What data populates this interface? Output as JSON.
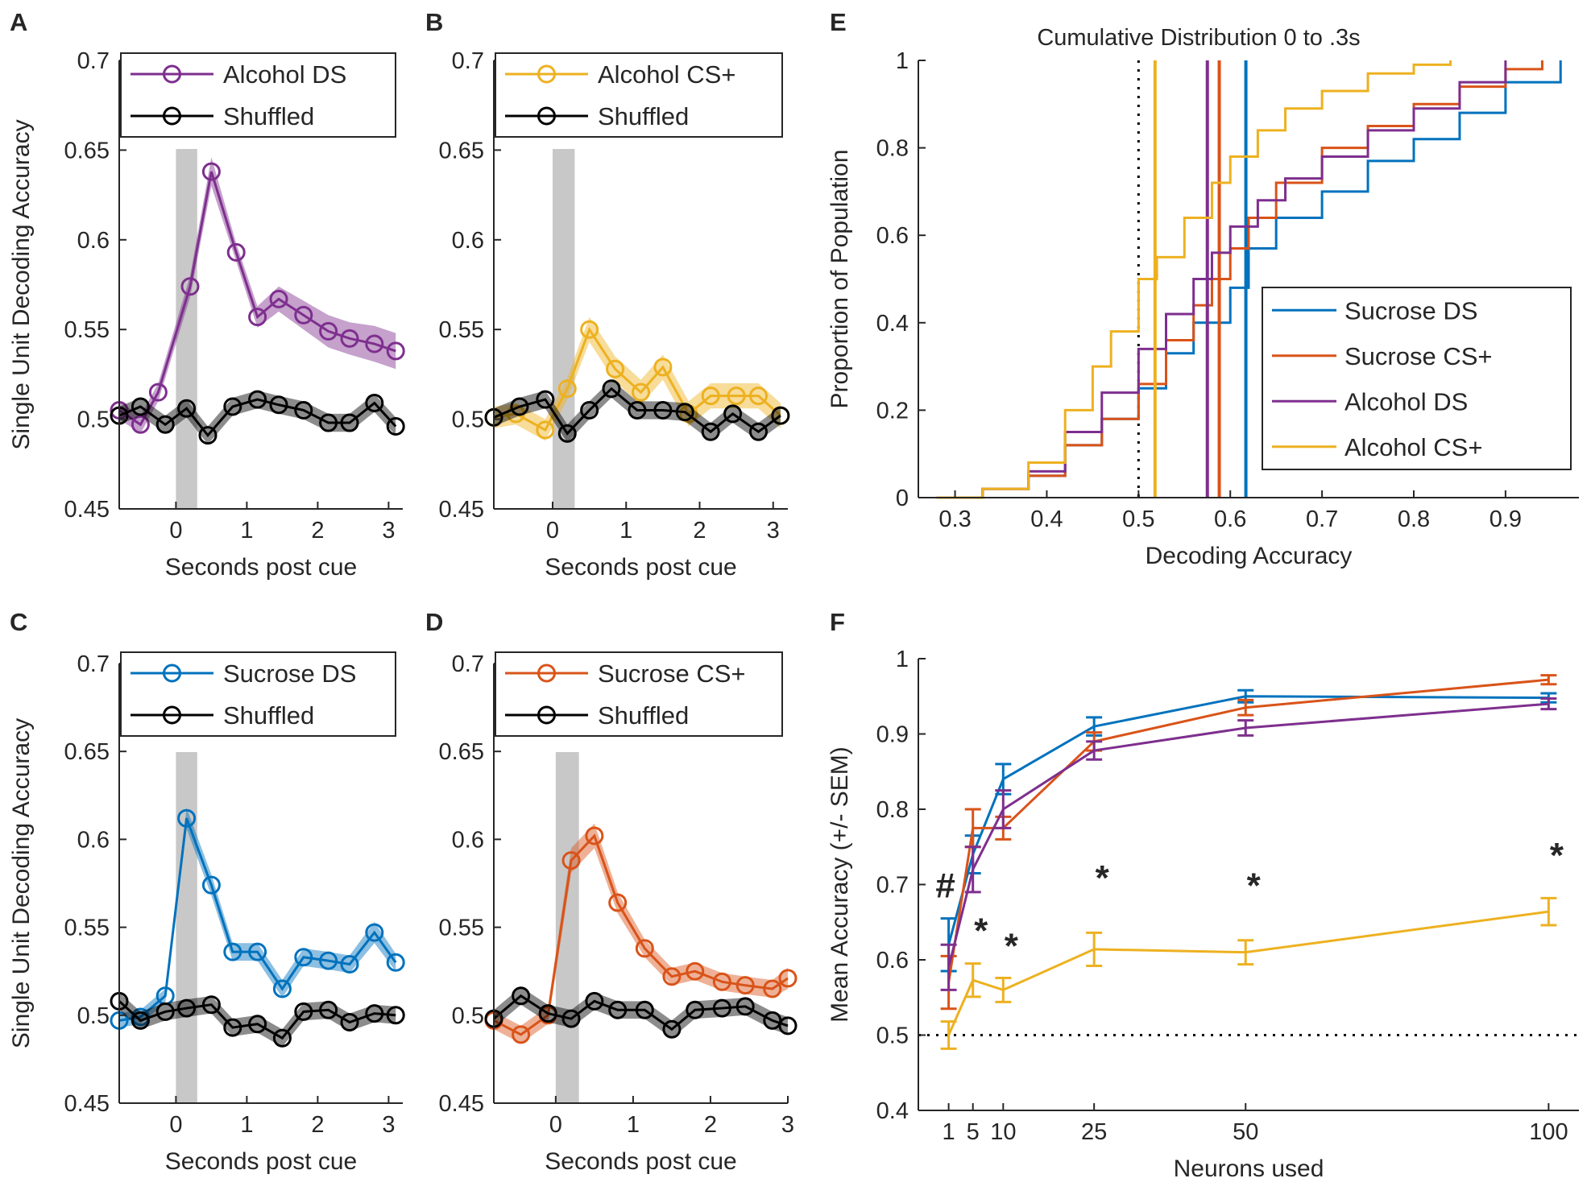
{
  "colors": {
    "alcohol_ds": "#7E2F8E",
    "alcohol_cs": "#EDB120",
    "sucrose_ds": "#0072BD",
    "sucrose_cs": "#D95319",
    "shuffled": "#000000",
    "window": "#C8C8C8"
  },
  "chart_data": [
    {
      "id": "A",
      "type": "line",
      "panel_label": "A",
      "xlabel": "Seconds post cue",
      "ylabel": "Single Unit Decoding Accuracy",
      "xlim": [
        -0.8,
        3.2
      ],
      "ylim": [
        0.45,
        0.7
      ],
      "xticks": [
        0,
        1,
        2,
        3
      ],
      "yticks": [
        0.45,
        0.5,
        0.55,
        0.6,
        0.65,
        0.7
      ],
      "ytick_labels": [
        "0.45",
        "0.5",
        "0.55",
        "0.6",
        "0.65",
        "0.7"
      ],
      "shaded_window": [
        0,
        0.3
      ],
      "legend": [
        "Alcohol DS",
        "Shuffled"
      ],
      "x": [
        -0.75,
        -0.45,
        -0.15,
        0.2,
        0.5,
        0.85,
        1.15,
        1.5,
        1.8,
        2.15,
        2.45,
        2.8,
        3.1
      ],
      "series": [
        {
          "name": "Alcohol DS",
          "color_key": "alcohol_ds",
          "x": [
            -0.8,
            -0.5,
            -0.25,
            0.0,
            0.2,
            0.5,
            0.85,
            1.15,
            1.45,
            1.8,
            2.15,
            2.45,
            2.8,
            3.1
          ],
          "values": [
            0.505,
            0.497,
            0.515,
            null,
            0.574,
            0.638,
            0.593,
            0.557,
            0.567,
            0.558,
            0.549,
            0.545,
            0.542,
            0.538
          ],
          "sem": [
            0.005,
            0.005,
            0.005,
            null,
            0.006,
            0.008,
            0.005,
            0.006,
            0.007,
            0.008,
            0.009,
            0.009,
            0.01,
            0.01
          ]
        },
        {
          "name": "Shuffled",
          "color_key": "shuffled",
          "x": [
            -0.8,
            -0.5,
            -0.15,
            0.15,
            0.45,
            0.8,
            1.15,
            1.45,
            1.8,
            2.15,
            2.45,
            2.8,
            3.1
          ],
          "values": [
            0.502,
            0.507,
            0.497,
            0.506,
            0.491,
            0.507,
            0.511,
            0.508,
            0.505,
            0.498,
            0.498,
            0.509,
            0.496
          ],
          "sem": [
            0.005,
            0.005,
            0.005,
            0.005,
            0.005,
            0.005,
            0.005,
            0.005,
            0.005,
            0.005,
            0.005,
            0.005,
            0.005
          ]
        }
      ]
    },
    {
      "id": "B",
      "type": "line",
      "panel_label": "B",
      "xlabel": "Seconds post cue",
      "ylabel": "",
      "xlim": [
        -0.8,
        3.2
      ],
      "ylim": [
        0.45,
        0.7
      ],
      "xticks": [
        0,
        1,
        2,
        3
      ],
      "yticks": [
        0.45,
        0.5,
        0.55,
        0.6,
        0.65,
        0.7
      ],
      "ytick_labels": [
        "0.45",
        "0.5",
        "0.55",
        "0.6",
        "0.65",
        "0.7"
      ],
      "shaded_window": [
        0,
        0.3
      ],
      "legend": [
        "Alcohol CS+",
        "Shuffled"
      ],
      "series": [
        {
          "name": "Alcohol CS+",
          "color_key": "alcohol_cs",
          "x": [
            -0.8,
            -0.5,
            -0.1,
            0.2,
            0.5,
            0.85,
            1.2,
            1.5,
            1.85,
            2.15,
            2.5,
            2.8,
            3.1
          ],
          "values": [
            0.501,
            0.503,
            0.494,
            0.517,
            0.55,
            0.528,
            0.515,
            0.529,
            0.503,
            0.513,
            0.513,
            0.513,
            0.502
          ],
          "sem": [
            0.006,
            0.006,
            0.006,
            0.006,
            0.007,
            0.007,
            0.007,
            0.007,
            0.007,
            0.007,
            0.007,
            0.007,
            0.007
          ]
        },
        {
          "name": "Shuffled",
          "color_key": "shuffled",
          "x": [
            -0.8,
            -0.45,
            -0.1,
            0.2,
            0.5,
            0.8,
            1.15,
            1.5,
            1.8,
            2.15,
            2.45,
            2.8,
            3.1
          ],
          "values": [
            0.501,
            0.507,
            0.511,
            0.492,
            0.505,
            0.517,
            0.505,
            0.505,
            0.504,
            0.493,
            0.503,
            0.493,
            0.502
          ],
          "sem": [
            0.005,
            0.005,
            0.005,
            0.005,
            0.005,
            0.005,
            0.005,
            0.005,
            0.005,
            0.005,
            0.005,
            0.005,
            0.005
          ]
        }
      ]
    },
    {
      "id": "C",
      "type": "line",
      "panel_label": "C",
      "xlabel": "Seconds post cue",
      "ylabel": "Single Unit Decoding Accuracy",
      "xlim": [
        -0.8,
        3.2
      ],
      "ylim": [
        0.45,
        0.7
      ],
      "xticks": [
        0,
        1,
        2,
        3
      ],
      "yticks": [
        0.45,
        0.5,
        0.55,
        0.6,
        0.65,
        0.7
      ],
      "ytick_labels": [
        "0.45",
        "0.5",
        "0.55",
        "0.6",
        "0.65",
        "0.7"
      ],
      "shaded_window": [
        0,
        0.3
      ],
      "legend": [
        "Sucrose DS",
        "Shuffled"
      ],
      "series": [
        {
          "name": "Sucrose DS",
          "color_key": "sucrose_ds",
          "x": [
            -0.8,
            -0.5,
            -0.15,
            0.15,
            0.5,
            0.8,
            1.15,
            1.5,
            1.8,
            2.15,
            2.45,
            2.8,
            3.1
          ],
          "values": [
            0.497,
            0.499,
            0.511,
            0.612,
            0.574,
            0.536,
            0.536,
            0.515,
            0.533,
            0.531,
            0.529,
            0.547,
            0.53
          ],
          "sem": [
            0.004,
            0.004,
            0.004,
            0.006,
            0.006,
            0.005,
            0.005,
            0.005,
            0.005,
            0.005,
            0.005,
            0.006,
            0.005
          ]
        },
        {
          "name": "Shuffled",
          "color_key": "shuffled",
          "x": [
            -0.8,
            -0.5,
            -0.15,
            0.15,
            0.5,
            0.8,
            1.15,
            1.5,
            1.8,
            2.15,
            2.45,
            2.8,
            3.1
          ],
          "values": [
            0.508,
            0.497,
            0.502,
            0.504,
            0.506,
            0.493,
            0.495,
            0.487,
            0.502,
            0.503,
            0.496,
            0.501,
            0.5
          ],
          "sem": [
            0.005,
            0.005,
            0.005,
            0.005,
            0.005,
            0.005,
            0.005,
            0.005,
            0.005,
            0.005,
            0.005,
            0.005,
            0.005
          ]
        }
      ]
    },
    {
      "id": "D",
      "type": "line",
      "panel_label": "D",
      "xlabel": "Seconds post cue",
      "ylabel": "",
      "xlim": [
        -0.8,
        3.0
      ],
      "ylim": [
        0.45,
        0.7
      ],
      "xticks": [
        0,
        1,
        2,
        3
      ],
      "yticks": [
        0.45,
        0.5,
        0.55,
        0.6,
        0.65,
        0.7
      ],
      "ytick_labels": [
        "0.45",
        "0.5",
        "0.55",
        "0.6",
        "0.65",
        "0.7"
      ],
      "shaded_window": [
        0,
        0.3
      ],
      "legend": [
        "Sucrose CS+",
        "Shuffled"
      ],
      "series": [
        {
          "name": "Sucrose CS+",
          "color_key": "sucrose_cs",
          "x": [
            -0.8,
            -0.45,
            -0.1,
            0.2,
            0.5,
            0.8,
            1.15,
            1.5,
            1.8,
            2.15,
            2.45,
            2.8,
            3.0
          ],
          "values": [
            0.497,
            0.489,
            0.5,
            0.588,
            0.602,
            0.564,
            0.538,
            0.522,
            0.525,
            0.519,
            0.517,
            0.515,
            0.521
          ],
          "sem": [
            0.005,
            0.005,
            0.005,
            0.007,
            0.007,
            0.006,
            0.005,
            0.005,
            0.005,
            0.005,
            0.005,
            0.005,
            0.006
          ]
        },
        {
          "name": "Shuffled",
          "color_key": "shuffled",
          "x": [
            -0.8,
            -0.45,
            -0.1,
            0.2,
            0.5,
            0.8,
            1.15,
            1.5,
            1.8,
            2.15,
            2.45,
            2.8,
            3.0
          ],
          "values": [
            0.498,
            0.511,
            0.501,
            0.498,
            0.508,
            0.503,
            0.503,
            0.492,
            0.503,
            0.504,
            0.505,
            0.497,
            0.494
          ],
          "sem": [
            0.005,
            0.005,
            0.005,
            0.005,
            0.005,
            0.005,
            0.005,
            0.005,
            0.005,
            0.005,
            0.005,
            0.005,
            0.005
          ]
        }
      ]
    },
    {
      "id": "E",
      "type": "line",
      "panel_label": "E",
      "title": "Cumulative Distribution 0 to .3s",
      "xlabel": "Decoding Accuracy",
      "ylabel": "Proportion of Population",
      "xlim": [
        0.26,
        0.98
      ],
      "ylim": [
        0,
        1
      ],
      "xticks": [
        0.3,
        0.4,
        0.5,
        0.6,
        0.7,
        0.8,
        0.9
      ],
      "xtick_labels": [
        "0.3",
        "0.4",
        "0.5",
        "0.6",
        "0.7",
        "0.8",
        "0.9"
      ],
      "yticks": [
        0,
        0.2,
        0.4,
        0.6,
        0.8,
        1
      ],
      "ytick_labels": [
        "0",
        "0.2",
        "0.4",
        "0.6",
        "0.8",
        "1"
      ],
      "chance_line": 0.5,
      "legend": [
        "Sucrose DS",
        "Sucrose CS+",
        "Alcohol DS",
        "Alcohol CS+"
      ],
      "medians": {
        "Sucrose DS": 0.617,
        "Sucrose CS+": 0.588,
        "Alcohol DS": 0.575,
        "Alcohol CS+": 0.518
      },
      "series": [
        {
          "name": "Sucrose DS",
          "color_key": "sucrose_ds",
          "x": [
            0.28,
            0.33,
            0.38,
            0.42,
            0.46,
            0.5,
            0.53,
            0.56,
            0.6,
            0.62,
            0.65,
            0.7,
            0.75,
            0.8,
            0.85,
            0.9,
            0.96
          ],
          "values": [
            0,
            0.02,
            0.05,
            0.12,
            0.18,
            0.25,
            0.33,
            0.4,
            0.48,
            0.57,
            0.64,
            0.7,
            0.77,
            0.82,
            0.88,
            0.95,
            1
          ]
        },
        {
          "name": "Sucrose CS+",
          "color_key": "sucrose_cs",
          "x": [
            0.28,
            0.33,
            0.38,
            0.42,
            0.46,
            0.5,
            0.53,
            0.56,
            0.58,
            0.6,
            0.62,
            0.65,
            0.7,
            0.75,
            0.8,
            0.85,
            0.9,
            0.94
          ],
          "values": [
            0,
            0.02,
            0.05,
            0.12,
            0.18,
            0.26,
            0.36,
            0.44,
            0.5,
            0.57,
            0.64,
            0.72,
            0.8,
            0.85,
            0.9,
            0.94,
            0.98,
            1
          ]
        },
        {
          "name": "Alcohol DS",
          "color_key": "alcohol_ds",
          "x": [
            0.28,
            0.33,
            0.38,
            0.42,
            0.46,
            0.5,
            0.53,
            0.56,
            0.58,
            0.6,
            0.63,
            0.66,
            0.7,
            0.75,
            0.8,
            0.85,
            0.9
          ],
          "values": [
            0,
            0.02,
            0.06,
            0.15,
            0.24,
            0.34,
            0.42,
            0.5,
            0.56,
            0.62,
            0.68,
            0.73,
            0.78,
            0.84,
            0.89,
            0.95,
            1
          ]
        },
        {
          "name": "Alcohol CS+",
          "color_key": "alcohol_cs",
          "x": [
            0.28,
            0.33,
            0.38,
            0.42,
            0.45,
            0.47,
            0.5,
            0.52,
            0.55,
            0.58,
            0.6,
            0.63,
            0.66,
            0.7,
            0.75,
            0.8,
            0.84
          ],
          "values": [
            0,
            0.02,
            0.08,
            0.2,
            0.3,
            0.38,
            0.5,
            0.55,
            0.64,
            0.72,
            0.78,
            0.84,
            0.89,
            0.93,
            0.97,
            0.99,
            1
          ]
        }
      ]
    },
    {
      "id": "F",
      "type": "line",
      "panel_label": "F",
      "xlabel": "Neurons used",
      "ylabel": "Mean Accuracy (+/- SEM)",
      "xlim": [
        -4,
        105
      ],
      "ylim": [
        0.4,
        1
      ],
      "xticks": [
        1,
        5,
        10,
        25,
        50,
        100
      ],
      "xtick_labels": [
        "1",
        "5",
        "10",
        "25",
        "50",
        "100"
      ],
      "yticks": [
        0.4,
        0.5,
        0.6,
        0.7,
        0.8,
        0.9,
        1
      ],
      "ytick_labels": [
        "0.4",
        "0.5",
        "0.6",
        "0.7",
        "0.8",
        "0.9",
        "1"
      ],
      "chance_line": 0.5,
      "x": [
        1,
        5,
        10,
        25,
        50,
        100
      ],
      "series": [
        {
          "name": "Sucrose DS",
          "color_key": "sucrose_ds",
          "values": [
            0.62,
            0.74,
            0.84,
            0.91,
            0.95,
            0.948
          ],
          "sem": [
            0.035,
            0.025,
            0.02,
            0.012,
            0.008,
            0.006
          ]
        },
        {
          "name": "Sucrose CS+",
          "color_key": "sucrose_cs",
          "values": [
            0.57,
            0.775,
            0.775,
            0.89,
            0.935,
            0.972
          ],
          "sem": [
            0.035,
            0.025,
            0.015,
            0.012,
            0.01,
            0.006
          ]
        },
        {
          "name": "Alcohol DS",
          "color_key": "alcohol_ds",
          "values": [
            0.59,
            0.72,
            0.8,
            0.878,
            0.908,
            0.94
          ],
          "sem": [
            0.03,
            0.03,
            0.025,
            0.012,
            0.01,
            0.007
          ]
        },
        {
          "name": "Alcohol CS+",
          "color_key": "alcohol_cs",
          "values": [
            0.5,
            0.573,
            0.56,
            0.614,
            0.61,
            0.664
          ],
          "sem": [
            0.018,
            0.022,
            0.016,
            0.022,
            0.016,
            0.018
          ]
        }
      ],
      "annotations": [
        {
          "text": "#",
          "x": 1,
          "y": 0.7
        },
        {
          "text": "*",
          "x": 5,
          "y": 0.64
        },
        {
          "text": "*",
          "x": 10,
          "y": 0.62
        },
        {
          "text": "*",
          "x": 25,
          "y": 0.71
        },
        {
          "text": "*",
          "x": 50,
          "y": 0.7
        },
        {
          "text": "*",
          "x": 100,
          "y": 0.74
        }
      ]
    }
  ]
}
